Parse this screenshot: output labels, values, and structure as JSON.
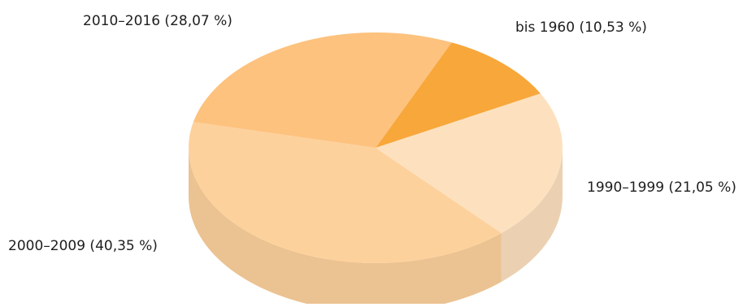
{
  "chart_data": {
    "type": "pie",
    "style": "3d",
    "title": "",
    "legend": "none",
    "categories": [
      "bis 1960",
      "1990–1999",
      "2000–2009",
      "2010–2016"
    ],
    "values": [
      10.53,
      21.05,
      40.35,
      28.07
    ],
    "labels": [
      "bis 1960 (10,53 %)",
      "1990–1999 (21,05 %)",
      "2000–2009 (40,35 %)",
      "2010–2016 (28,07 %)"
    ],
    "colors": [
      "#f8a73a",
      "#fde1bf",
      "#fdd19c",
      "#fdc27e"
    ]
  }
}
